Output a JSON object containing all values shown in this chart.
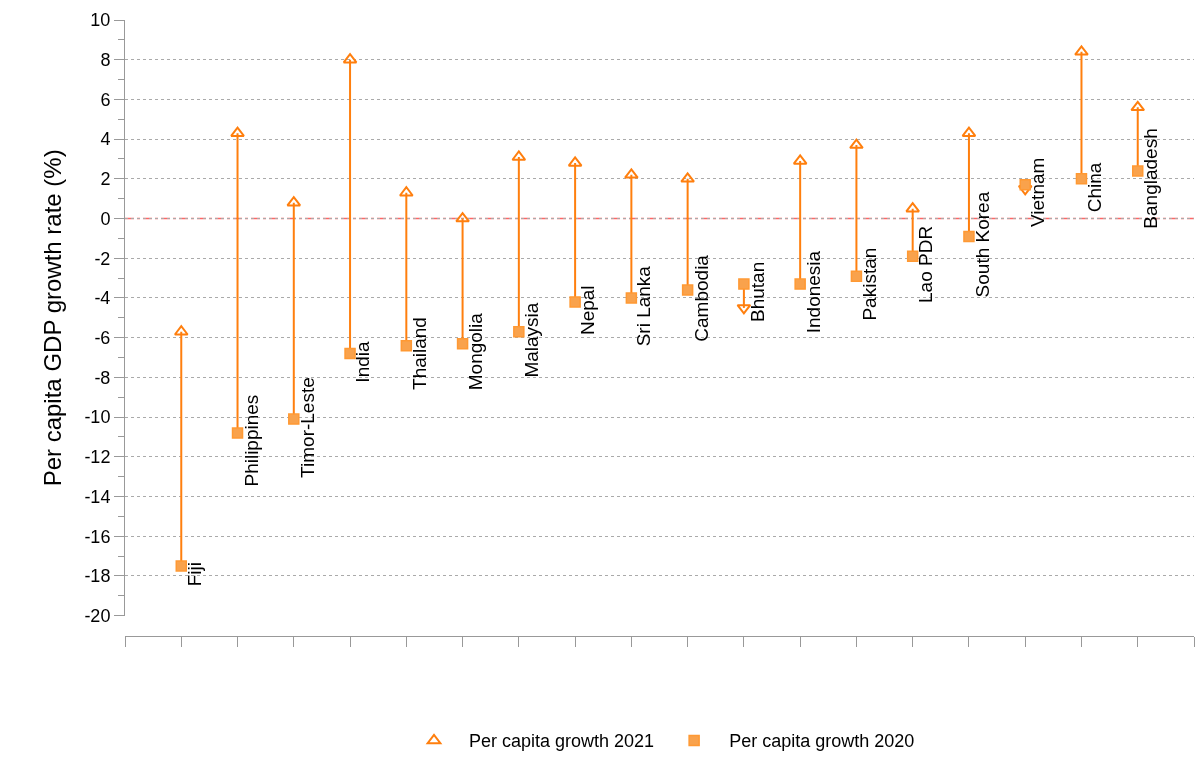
{
  "chart_data": {
    "type": "scatter",
    "ylabel": "Per capita GDP growth rate (%)",
    "categories": [
      "Fiji",
      "Philippines",
      "Timor-Leste",
      "India",
      "Thailand",
      "Mongolia",
      "Malaysia",
      "Nepal",
      "Sri Lanka",
      "Cambodia",
      "Bhutan",
      "Indonesia",
      "Pakistan",
      "Lao PDR",
      "South Korea",
      "Vietnam",
      "China",
      "Bangladesh"
    ],
    "series": [
      {
        "name": "Per capita growth 2021",
        "marker": "triangle",
        "color": "#ff7f0e",
        "values": [
          -5.7,
          4.3,
          0.8,
          8.0,
          1.3,
          0.0,
          3.1,
          2.8,
          2.2,
          2.0,
          -4.5,
          2.9,
          3.7,
          0.5,
          4.3,
          1.5,
          8.4,
          5.6
        ]
      },
      {
        "name": "Per capita growth 2020",
        "marker": "square",
        "color": "#f9a24c",
        "values": [
          -17.5,
          -10.8,
          -10.1,
          -6.8,
          -6.4,
          -6.3,
          -5.7,
          -4.2,
          -4.0,
          -3.6,
          -3.3,
          -3.3,
          -2.9,
          -1.9,
          -0.9,
          1.7,
          2.0,
          2.4
        ]
      }
    ],
    "ylim": [
      -20,
      10
    ],
    "yticks": [
      -20,
      {
        "value": -19,
        "label": null
      },
      -18,
      {
        "value": -17,
        "label": null
      },
      -16,
      {
        "value": -15,
        "label": null
      },
      -14,
      {
        "value": -13,
        "label": null
      },
      -12,
      {
        "value": -11,
        "label": null
      },
      -10,
      {
        "value": -9,
        "label": null
      },
      -8,
      {
        "value": -7,
        "label": null
      },
      -6,
      {
        "value": -5,
        "label": null
      },
      -4,
      {
        "value": -3,
        "label": null
      },
      -2,
      {
        "value": -1,
        "label": null
      },
      0,
      {
        "value": 1,
        "label": null
      },
      2,
      {
        "value": 3,
        "label": null
      },
      4,
      {
        "value": 5,
        "label": null
      },
      6,
      {
        "value": 7,
        "label": null
      },
      8,
      {
        "value": 9,
        "label": null
      },
      10
    ],
    "ref_lines": [
      {
        "axis": "y",
        "value": 0,
        "color": "#ff6666",
        "line_style": "dashdot"
      }
    ],
    "grid": "y",
    "legend": "bottom"
  }
}
